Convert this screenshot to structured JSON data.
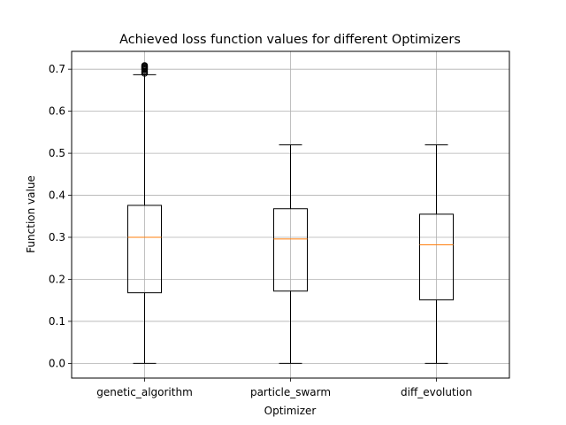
{
  "chart_data": {
    "type": "box",
    "title": "Achieved loss function values for different Optimizers",
    "xlabel": "Optimizer",
    "ylabel": "Function value",
    "ylim": [
      -0.035,
      0.7425
    ],
    "yticks": [
      0.0,
      0.1,
      0.2,
      0.3,
      0.4,
      0.5,
      0.6,
      0.7
    ],
    "ytick_labels": [
      "0.0",
      "0.1",
      "0.2",
      "0.3",
      "0.4",
      "0.5",
      "0.6",
      "0.7"
    ],
    "grid": true,
    "categories": [
      "genetic_algorithm",
      "particle_swarm",
      "diff_evolution"
    ],
    "boxes": [
      {
        "category": "genetic_algorithm",
        "whisker_low": 0.0,
        "q1": 0.168,
        "median": 0.3,
        "q3": 0.376,
        "whisker_high": 0.687,
        "outliers": [
          0.69,
          0.693,
          0.696,
          0.699,
          0.701,
          0.703,
          0.705,
          0.707,
          0.709
        ]
      },
      {
        "category": "particle_swarm",
        "whisker_low": 0.0,
        "q1": 0.172,
        "median": 0.296,
        "q3": 0.368,
        "whisker_high": 0.52,
        "outliers": []
      },
      {
        "category": "diff_evolution",
        "whisker_low": 0.0,
        "q1": 0.151,
        "median": 0.282,
        "q3": 0.355,
        "whisker_high": 0.52,
        "outliers": []
      }
    ],
    "colors": {
      "box": "#000000",
      "median": "#ff7f0e",
      "grid": "#b0b0b0",
      "outlier": "#000000"
    }
  }
}
